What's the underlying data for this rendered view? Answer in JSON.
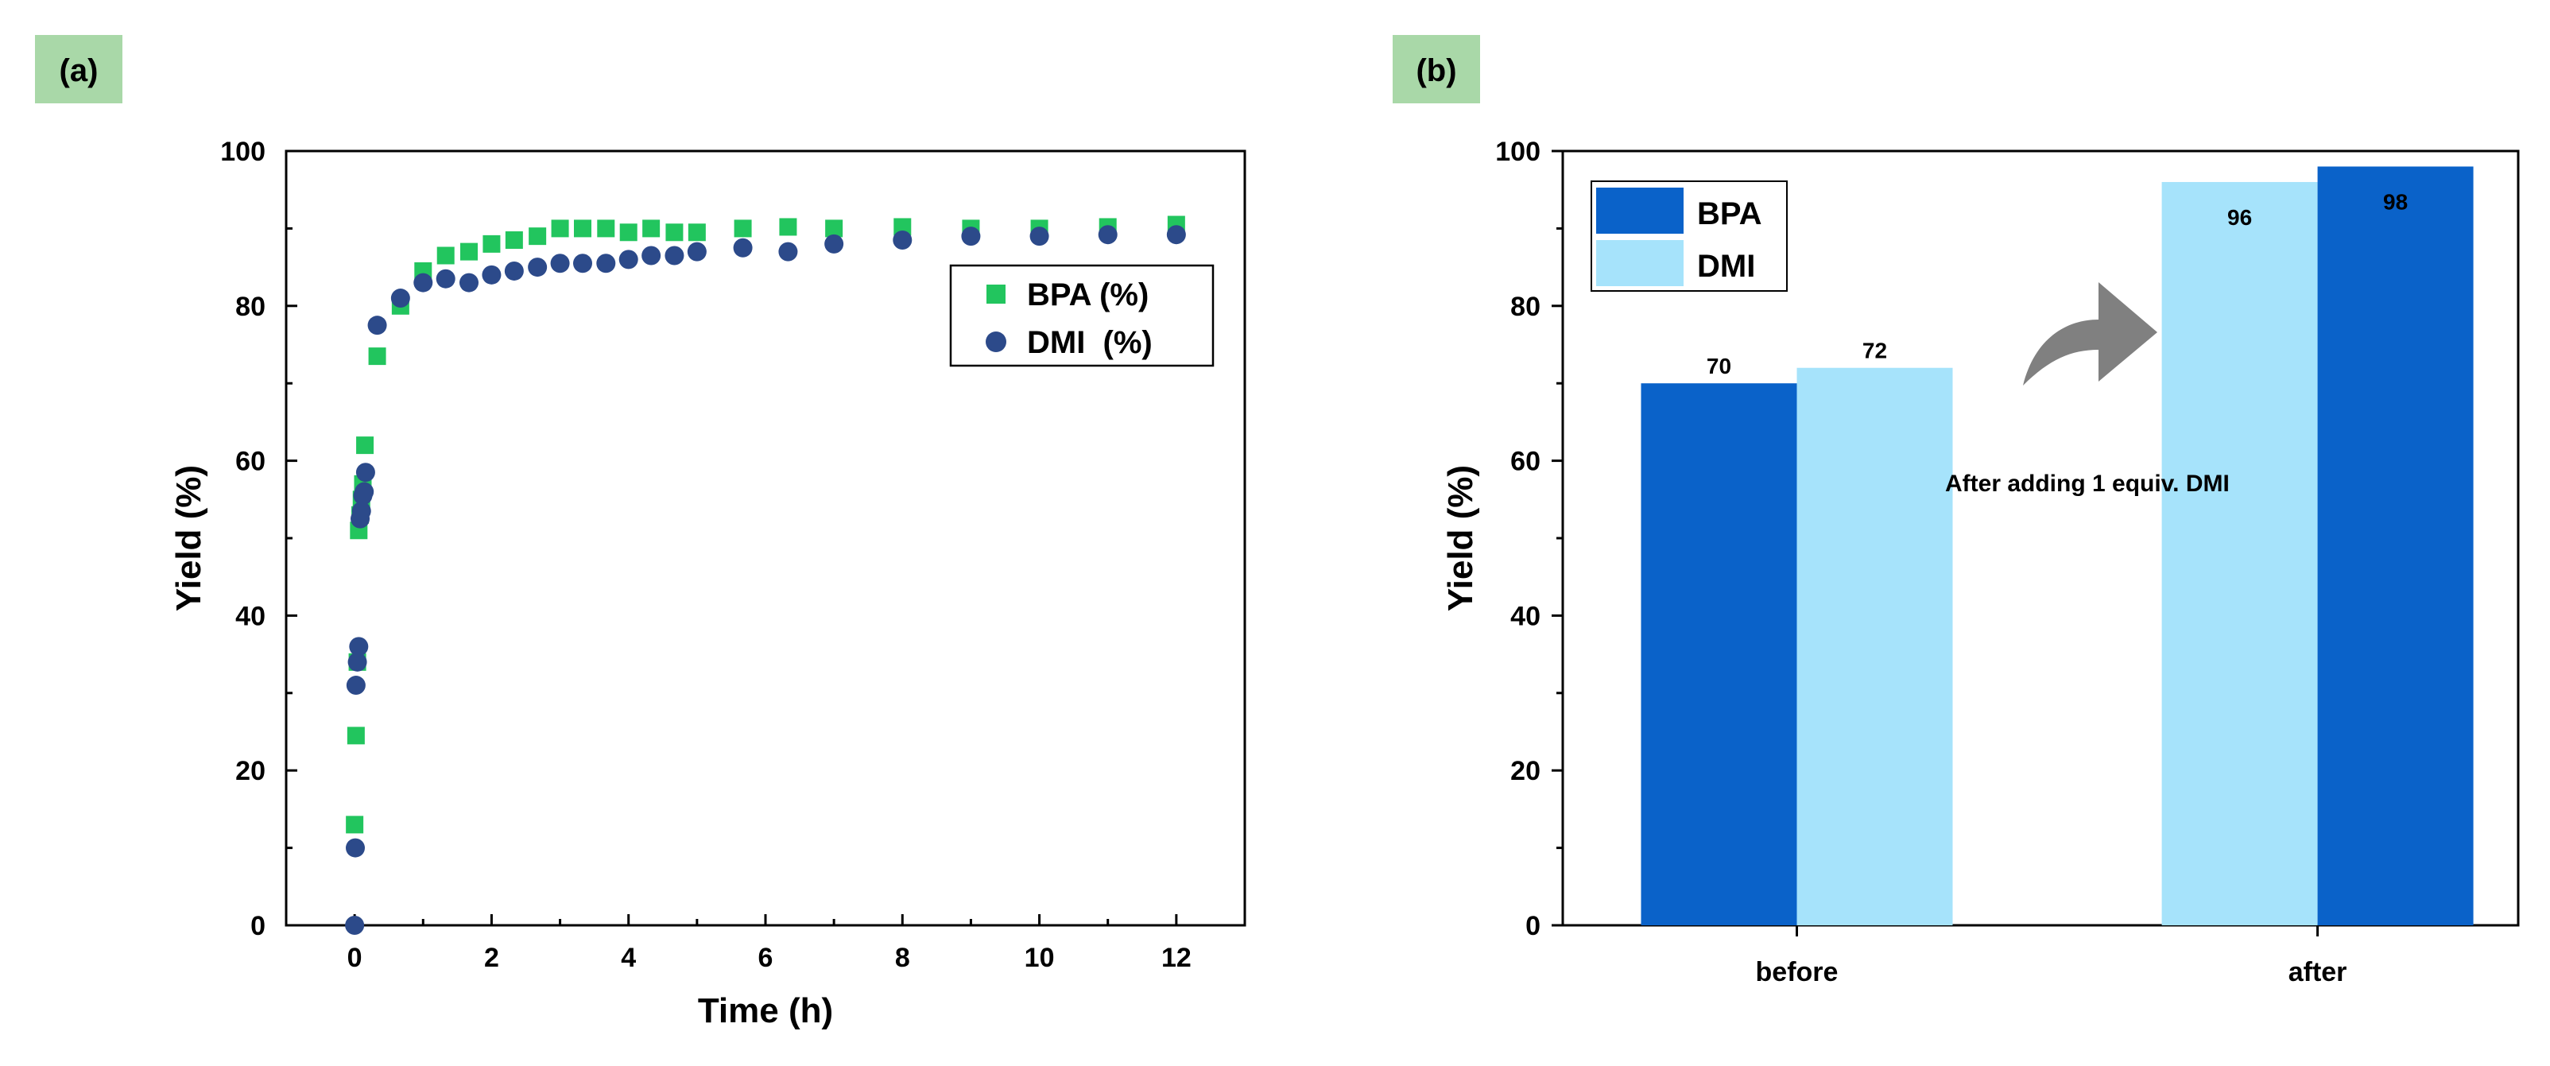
{
  "colors": {
    "bpa_marker": "#22c55e",
    "dmi_marker": "#2c4a8a",
    "bpa_bar": "#0a62c9",
    "dmi_bar": "#a6e3fb",
    "arrow": "#808080",
    "panel_tag": "#a9d8a8"
  },
  "panels": {
    "a": {
      "tag": "(a)"
    },
    "b": {
      "tag": "(b)"
    }
  },
  "chart_data": [
    {
      "id": "a",
      "type": "scatter",
      "title": "",
      "xlabel": "Time (h)",
      "ylabel": "Yield (%)",
      "xlim": [
        -1,
        13
      ],
      "ylim": [
        0,
        100
      ],
      "xticks": [
        0,
        2,
        4,
        6,
        8,
        10,
        12
      ],
      "yticks": [
        0,
        20,
        40,
        60,
        80,
        100
      ],
      "legend": [
        "BPA (%)",
        "DMI  (%)"
      ],
      "legend_position": "top-right",
      "series": [
        {
          "name": "BPA (%)",
          "marker": "square",
          "x": [
            0,
            0.02,
            0.04,
            0.06,
            0.08,
            0.1,
            0.12,
            0.15,
            0.33,
            0.67,
            1,
            1.33,
            1.67,
            2,
            2.33,
            2.67,
            3,
            3.33,
            3.67,
            4,
            4.33,
            4.67,
            5,
            5.67,
            6.33,
            7,
            8,
            9,
            10,
            11,
            12
          ],
          "y": [
            13,
            24.5,
            34,
            51,
            53,
            55,
            57,
            62,
            73.5,
            80,
            84.5,
            86.5,
            87,
            88,
            88.5,
            89,
            90,
            90,
            90,
            89.5,
            90,
            89.5,
            89.5,
            90,
            90.2,
            90,
            90.2,
            90,
            90,
            90.2,
            90.5
          ]
        },
        {
          "name": "DMI  (%)",
          "marker": "circle",
          "x": [
            0,
            0.01,
            0.02,
            0.04,
            0.06,
            0.08,
            0.1,
            0.12,
            0.14,
            0.16,
            0.33,
            0.67,
            1,
            1.33,
            1.67,
            2,
            2.33,
            2.67,
            3,
            3.33,
            3.67,
            4,
            4.33,
            4.67,
            5,
            5.67,
            6.33,
            7,
            8,
            9,
            10,
            11,
            12
          ],
          "y": [
            0,
            10,
            31,
            34,
            36,
            52.5,
            53.5,
            55.5,
            56,
            58.5,
            77.5,
            81,
            83,
            83.5,
            83,
            84,
            84.5,
            85,
            85.5,
            85.5,
            85.5,
            86,
            86.5,
            86.5,
            87,
            87.5,
            87,
            88,
            88.5,
            89,
            89,
            89.2,
            89.2
          ]
        }
      ]
    },
    {
      "id": "b",
      "type": "bar",
      "title": "",
      "xlabel": "",
      "ylabel": "Yield (%)",
      "ylim": [
        0,
        100
      ],
      "yticks": [
        0,
        20,
        40,
        60,
        80,
        100
      ],
      "categories": [
        "before",
        "after"
      ],
      "legend": [
        "BPA",
        "DMI"
      ],
      "legend_position": "top-left",
      "groups": [
        {
          "category": "before",
          "bars": [
            {
              "series": "BPA",
              "value": 70,
              "label": "70"
            },
            {
              "series": "DMI",
              "value": 72,
              "label": "72"
            }
          ]
        },
        {
          "category": "after",
          "bars": [
            {
              "series": "DMI",
              "value": 96,
              "label": "96"
            },
            {
              "series": "BPA",
              "value": 98,
              "label": "98"
            }
          ]
        }
      ],
      "annotation": "After adding 1 equiv. DMI"
    }
  ]
}
